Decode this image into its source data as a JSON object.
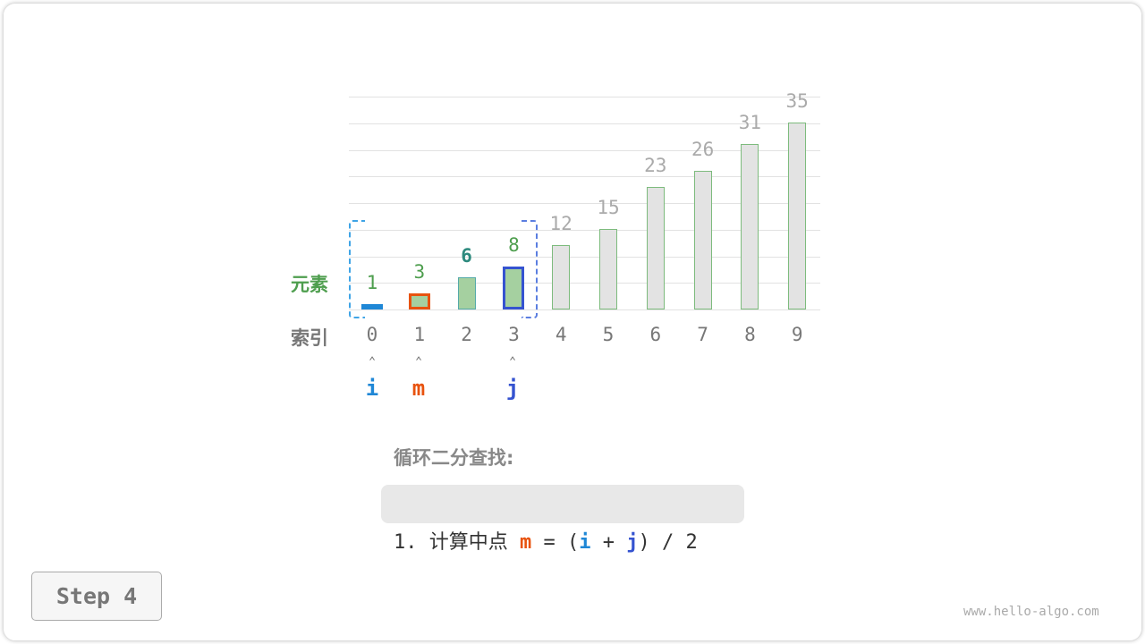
{
  "array": {
    "values": [
      1,
      3,
      6,
      8,
      12,
      15,
      23,
      26,
      31,
      35
    ],
    "indices": [
      "0",
      "1",
      "2",
      "3",
      "4",
      "5",
      "6",
      "7",
      "8",
      "9"
    ],
    "value_range_max": 35
  },
  "labels": {
    "elements": "元素",
    "index": "索引"
  },
  "search_range": {
    "i": 0,
    "j": 3,
    "m": 1
  },
  "pointers": {
    "i": "i",
    "m": "m",
    "j": "j",
    "arrow": "⌃"
  },
  "colors": {
    "i": "#1f87d6",
    "m": "#e8530e",
    "j": "#3553d0",
    "in_range_fill": "#a5d0a0",
    "out_range_fill": "#e3e3e3",
    "range_bracket": "#5b8ae0",
    "mid_value": "#2d8a7e",
    "in_range_value": "#4e9e4e"
  },
  "title": "循环二分查找:",
  "step_formula": {
    "prefix": "1. 计算中点 ",
    "m": "m",
    "eq": " = (",
    "i": "i",
    "plus": " + ",
    "j": "j",
    "suffix": ") / 2"
  },
  "step_button": "Step 4",
  "watermark": "www.hello-algo.com"
}
